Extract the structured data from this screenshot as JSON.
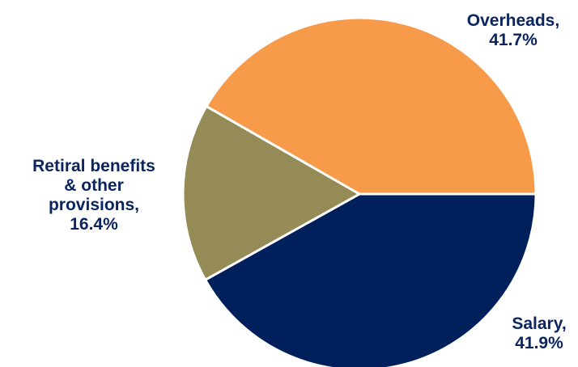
{
  "chart_data": {
    "type": "pie",
    "title": "",
    "slices": [
      {
        "name": "Salary",
        "value": 41.9,
        "label_lines": [
          "Salary,",
          "41.9%"
        ],
        "color": "#00205b"
      },
      {
        "name": "Retiral benefits & other provisions",
        "value": 16.4,
        "label_lines": [
          "Retiral benefits",
          "& other",
          "provisions,",
          "16.4%"
        ],
        "color": "#958b57"
      },
      {
        "name": "Overheads",
        "value": 41.7,
        "label_lines": [
          "Overheads,",
          "41.7%"
        ],
        "color": "#f79a4a"
      }
    ],
    "start": "3 o'clock",
    "direction": "clockwise",
    "legend": "none",
    "slice_border_color": "#ffffff"
  }
}
